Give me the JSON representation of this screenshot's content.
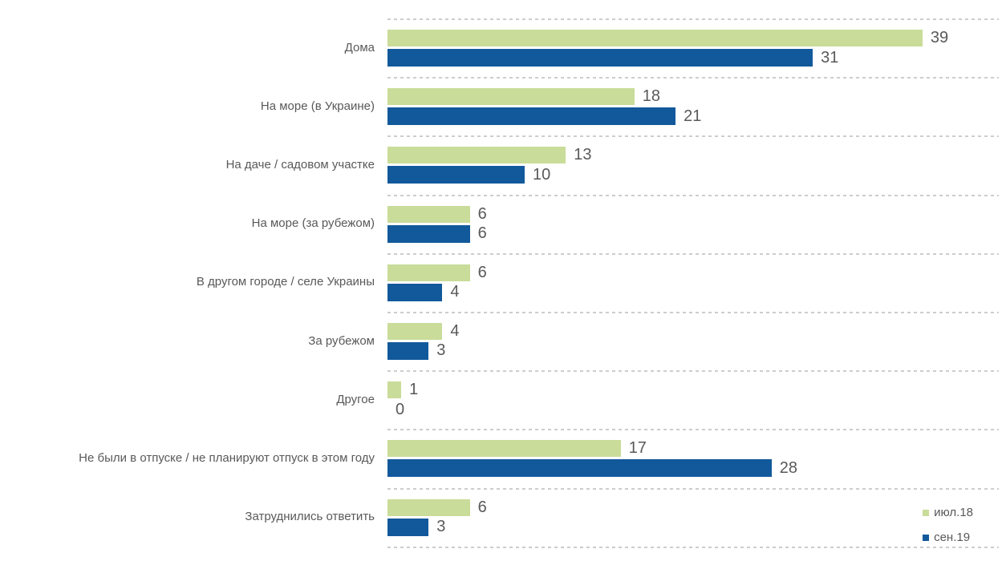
{
  "chart_data": {
    "type": "bar",
    "orientation": "horizontal",
    "title": "",
    "categories": [
      "Дома",
      "На море (в Украине)",
      "На даче / садовом участке",
      "На море (за рубежом)",
      "В другом городе / селе Украины",
      "За рубежом",
      "Другое",
      "Не были в отпуске / не планируют отпуск в этом году",
      "Затруднились ответить"
    ],
    "series": [
      {
        "name": "июл.18",
        "color": "#c9dc99",
        "values": [
          39,
          18,
          13,
          6,
          6,
          4,
          1,
          17,
          6
        ]
      },
      {
        "name": "сен.19",
        "color": "#12599b",
        "values": [
          31,
          21,
          10,
          6,
          4,
          3,
          0,
          28,
          3
        ]
      }
    ],
    "xlim": [
      0,
      44
    ],
    "value_labels": true,
    "legend_position": "bottom-right",
    "grid": "dashed horizontal row separators",
    "grid_color": "#cdcdcd",
    "text_color": "#595959",
    "background_color": "#ffffff"
  }
}
